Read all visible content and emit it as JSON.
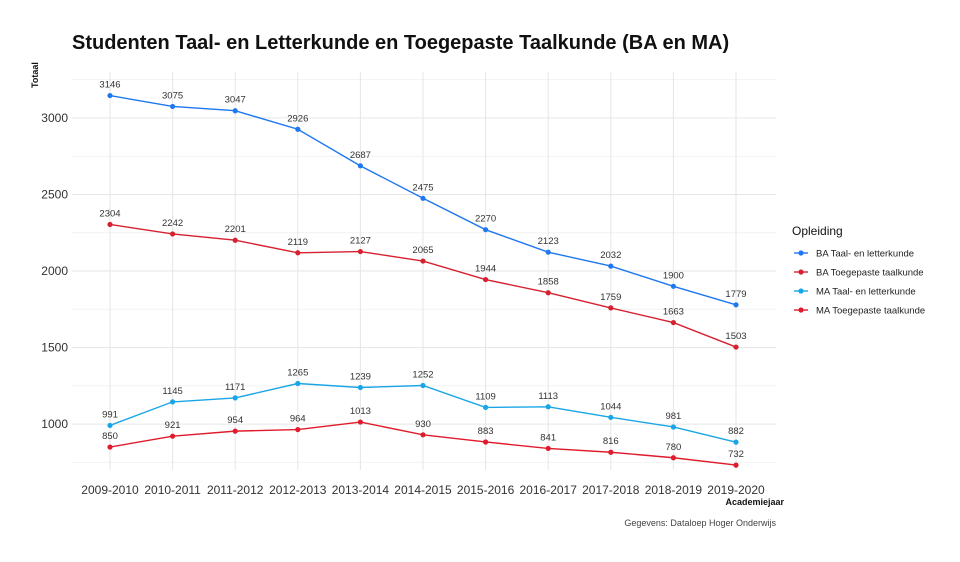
{
  "chart_data": {
    "type": "line",
    "title": "Studenten Taal- en Letterkunde en Toegepaste Taalkunde (BA en MA)",
    "xlabel": "Academiejaar",
    "ylabel": "Totaal",
    "caption": "Gegevens: Dataloep Hoger Onderwijs",
    "categories": [
      "2009-2010",
      "2010-2011",
      "2011-2012",
      "2012-2013",
      "2013-2014",
      "2014-2015",
      "2015-2016",
      "2016-2017",
      "2017-2018",
      "2018-2019",
      "2019-2020"
    ],
    "yticks": [
      "1000",
      "1500",
      "2000",
      "2500",
      "3000"
    ],
    "ylim": [
      700,
      3300
    ],
    "grid": true,
    "legend": {
      "title": "Opleiding",
      "placement": "right"
    },
    "series": [
      {
        "name": "BA Taal- en letterkunde",
        "color": "#1f78f0",
        "values": [
          3146,
          3075,
          3047,
          2926,
          2687,
          2475,
          2270,
          2123,
          2032,
          1900,
          1779
        ]
      },
      {
        "name": "BA Toegepaste taalkunde",
        "color": "#d62130",
        "values": [
          2304,
          2242,
          2201,
          2119,
          2127,
          2065,
          1944,
          1858,
          1759,
          1663,
          1503
        ]
      },
      {
        "name": "MA Taal- en letterkunde",
        "color": "#1aa6e6",
        "values": [
          991,
          1145,
          1171,
          1265,
          1239,
          1252,
          1109,
          1113,
          1044,
          981,
          882
        ]
      },
      {
        "name": "MA Toegepaste taalkunde",
        "color": "#e01b2c",
        "values": [
          850,
          921,
          954,
          964,
          1013,
          930,
          883,
          841,
          816,
          780,
          732
        ]
      }
    ]
  }
}
